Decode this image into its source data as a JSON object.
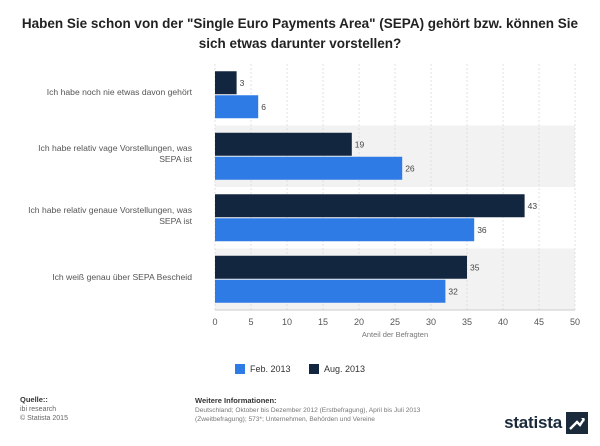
{
  "title": "Haben Sie schon von der \"Single Euro Payments Area\" (SEPA) gehört bzw. können Sie sich etwas darunter vorstellen?",
  "chart_data": {
    "type": "bar",
    "orientation": "horizontal",
    "categories": [
      "Ich habe noch nie etwas davon gehört",
      "Ich habe relativ vage Vorstellungen, was SEPA ist",
      "Ich habe relativ genaue Vorstellungen, was SEPA ist",
      "Ich weiß genau über SEPA Bescheid"
    ],
    "series": [
      {
        "name": "Aug. 2013",
        "color": "#12263f",
        "values": [
          3,
          19,
          43,
          35
        ]
      },
      {
        "name": "Feb. 2013",
        "color": "#2e7be6",
        "values": [
          6,
          26,
          36,
          32
        ]
      }
    ],
    "xlabel": "Anteil der Befragten",
    "xlim": [
      0,
      50
    ],
    "xticks": [
      0,
      5,
      10,
      15,
      20,
      25,
      30,
      35,
      40,
      45,
      50
    ],
    "grid": true,
    "data_labels": true,
    "legend_position": "bottom"
  },
  "legend": [
    {
      "label": "Feb. 2013",
      "color": "#2e7be6"
    },
    {
      "label": "Aug. 2013",
      "color": "#12263f"
    }
  ],
  "footer": {
    "source_title": "Quelle::",
    "source_lines": [
      "ibi research",
      "© Statista 2015"
    ],
    "info_title": "Weitere Informationen:",
    "info_text": "Deutschland; Oktober bis Dezember 2012 (Erstbefragung), April bis Juli 2013 (Zweitbefragung); 573*; Unternehmen, Behörden und Vereine",
    "logo_text": "statista"
  }
}
